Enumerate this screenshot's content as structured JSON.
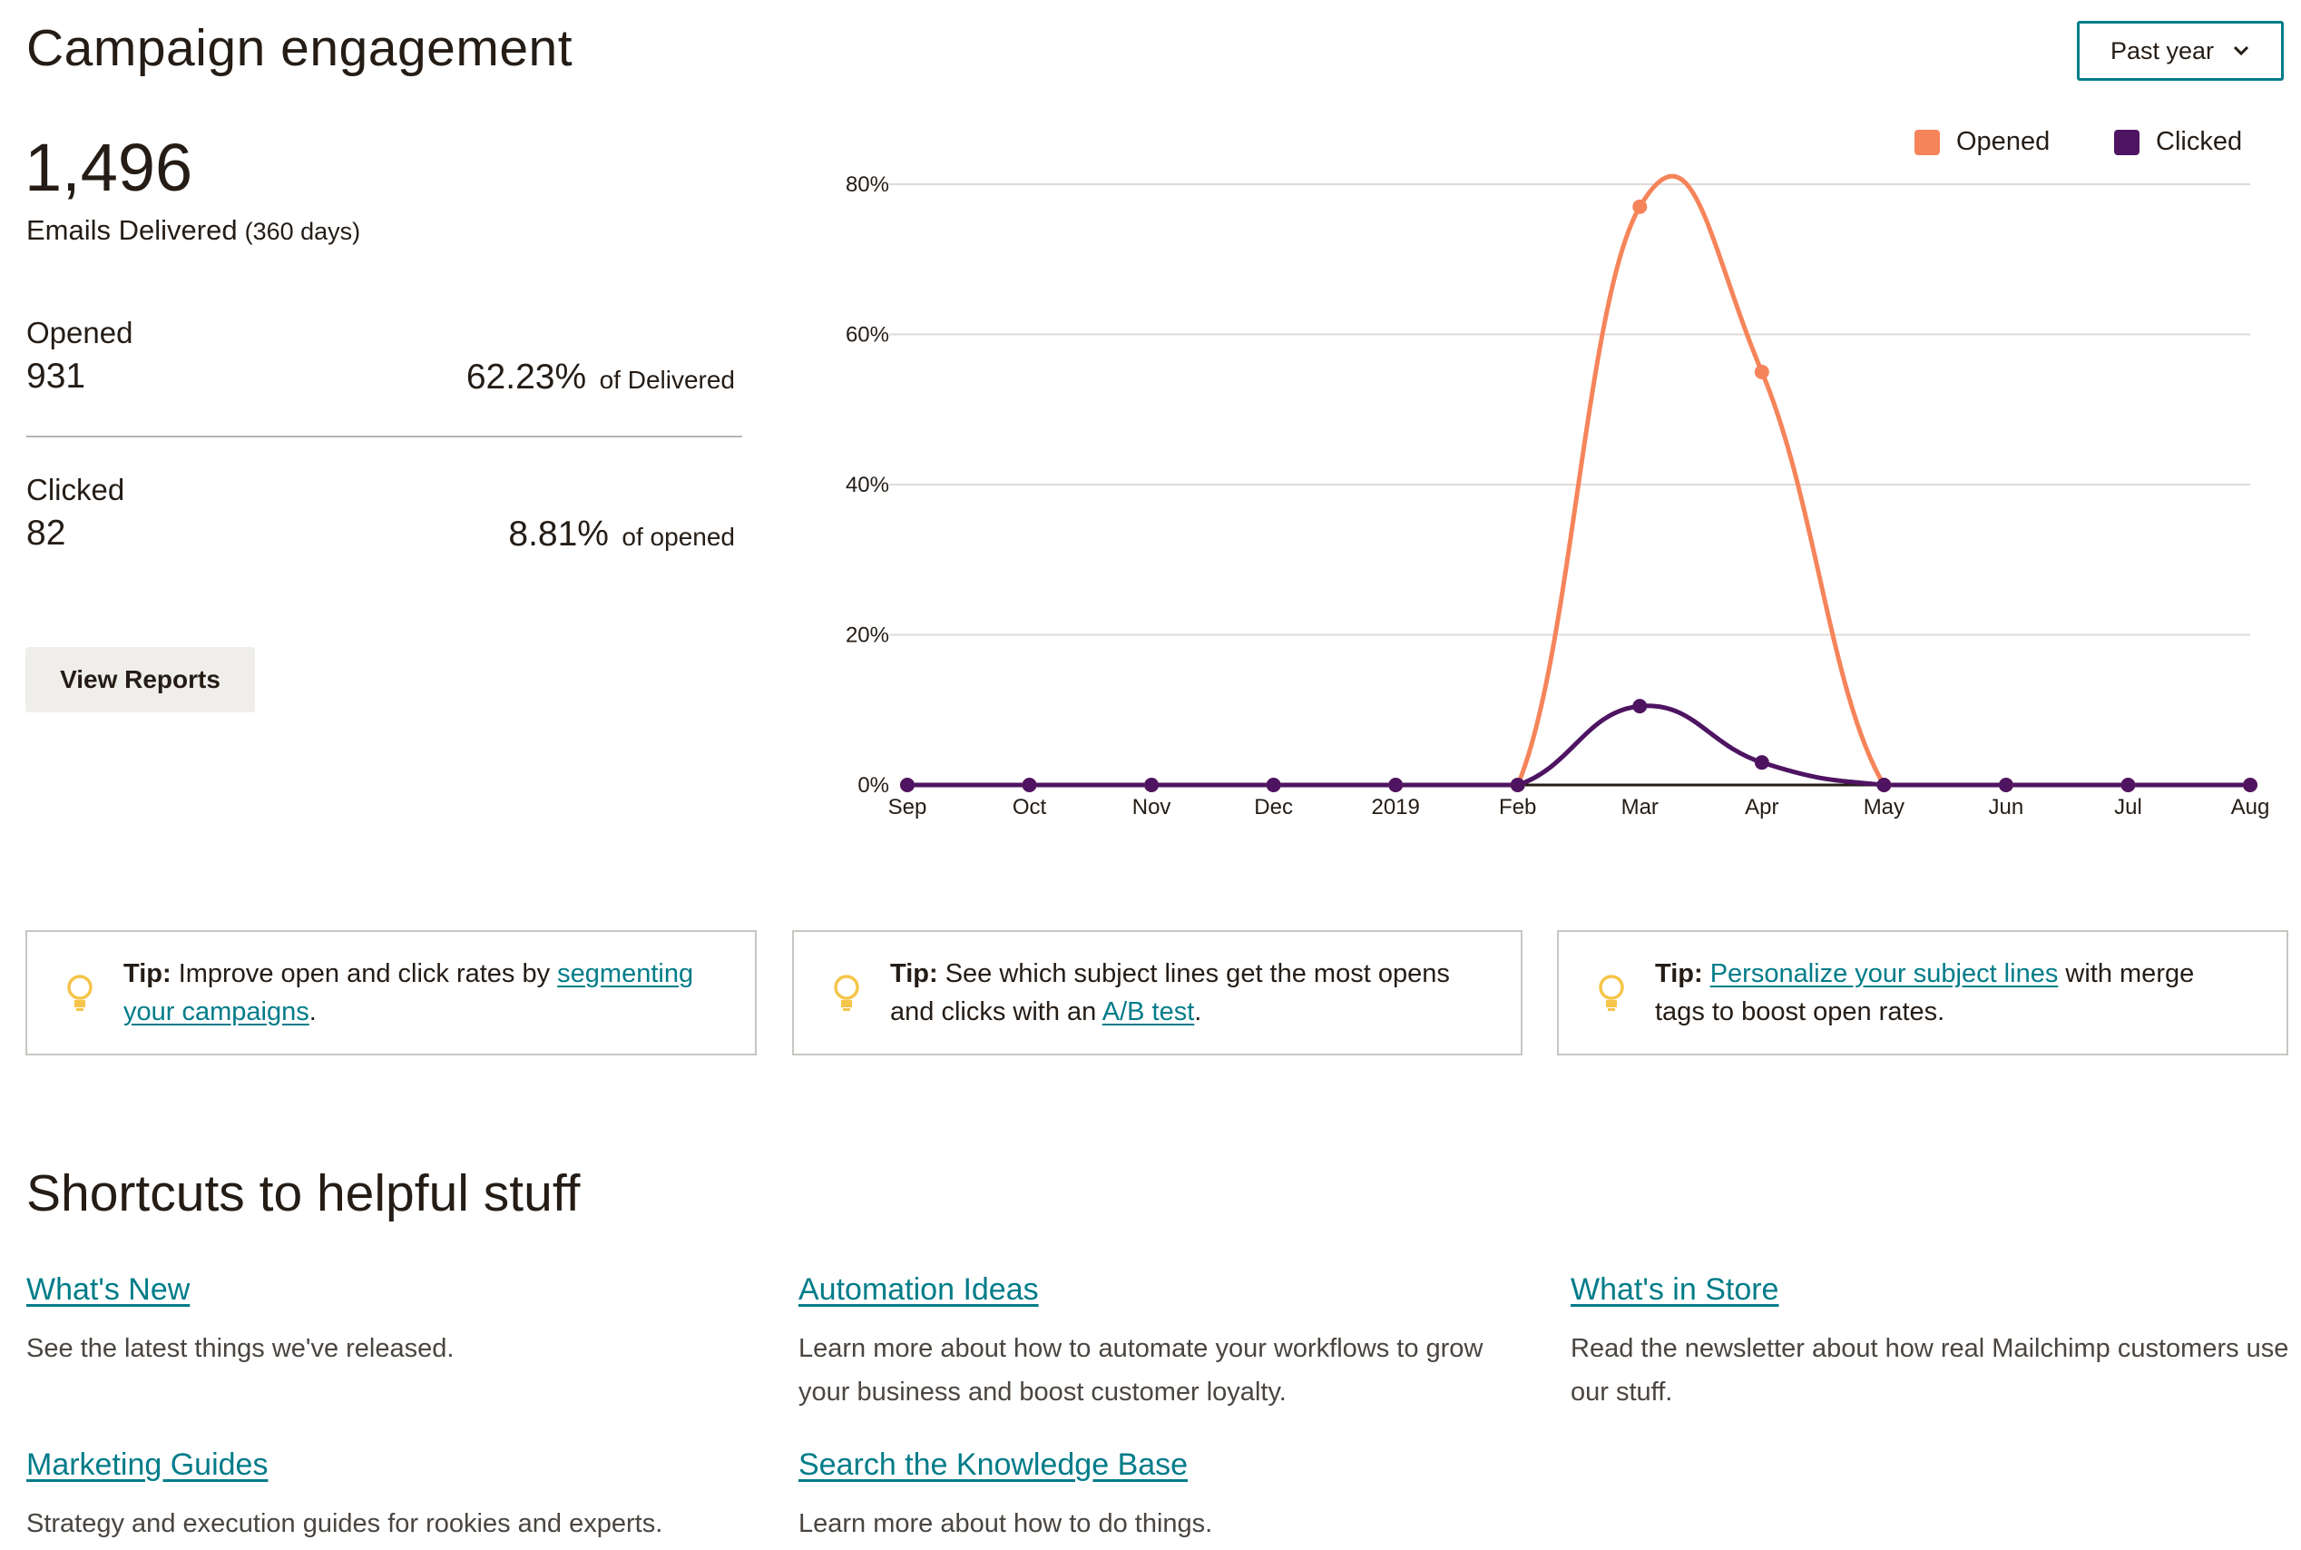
{
  "header": {
    "title": "Campaign engagement",
    "range_select": "Past year"
  },
  "stats": {
    "delivered_count": "1,496",
    "delivered_label": "Emails Delivered",
    "delivered_days": "(360 days)",
    "opened": {
      "label": "Opened",
      "value": "931",
      "percent": "62.23%",
      "note": "of Delivered"
    },
    "clicked": {
      "label": "Clicked",
      "value": "82",
      "percent": "8.81%",
      "note": "of opened"
    },
    "view_reports": "View Reports"
  },
  "colors": {
    "opened": "#f6845a",
    "clicked": "#4e1462",
    "link": "#007c89",
    "tip_icon": "#f5c54a"
  },
  "chart_data": {
    "type": "line",
    "categories": [
      "Sep",
      "Oct",
      "Nov",
      "Dec",
      "2019",
      "Feb",
      "Mar",
      "Apr",
      "May",
      "Jun",
      "Jul",
      "Aug"
    ],
    "series": [
      {
        "name": "Opened",
        "values": [
          0,
          0,
          0,
          0,
          0,
          0,
          77,
          55,
          0,
          0,
          0,
          0
        ]
      },
      {
        "name": "Clicked",
        "values": [
          0,
          0,
          0,
          0,
          0,
          0,
          10.5,
          3,
          0,
          0,
          0,
          0
        ]
      }
    ],
    "yticks": [
      "0%",
      "20%",
      "40%",
      "60%",
      "80%"
    ],
    "ylim": [
      0,
      80
    ],
    "grid": true,
    "legend": "top-right"
  },
  "tips": [
    {
      "prefix": "Tip:",
      "before": "Improve open and click rates by ",
      "link": "segmenting your campaigns",
      "after": "."
    },
    {
      "prefix": "Tip:",
      "before": "See which subject lines get the most opens and clicks with an ",
      "link": "A/B test",
      "after": "."
    },
    {
      "prefix": "Tip:",
      "before": "",
      "link": "Personalize your subject lines",
      "after": " with merge tags to boost open rates."
    }
  ],
  "shortcuts": {
    "title": "Shortcuts to helpful stuff",
    "items": [
      {
        "title": "What's New",
        "desc": "See the latest things we've released."
      },
      {
        "title": "Automation Ideas",
        "desc": "Learn more about how to automate your workflows to grow your business and boost customer loyalty."
      },
      {
        "title": "What's in Store",
        "desc": "Read the newsletter about how real Mailchimp customers use our stuff."
      },
      {
        "title": "Marketing Guides",
        "desc": "Strategy and execution guides for rookies and experts."
      },
      {
        "title": "Search the Knowledge Base",
        "desc": "Learn more about how to do things."
      }
    ]
  }
}
